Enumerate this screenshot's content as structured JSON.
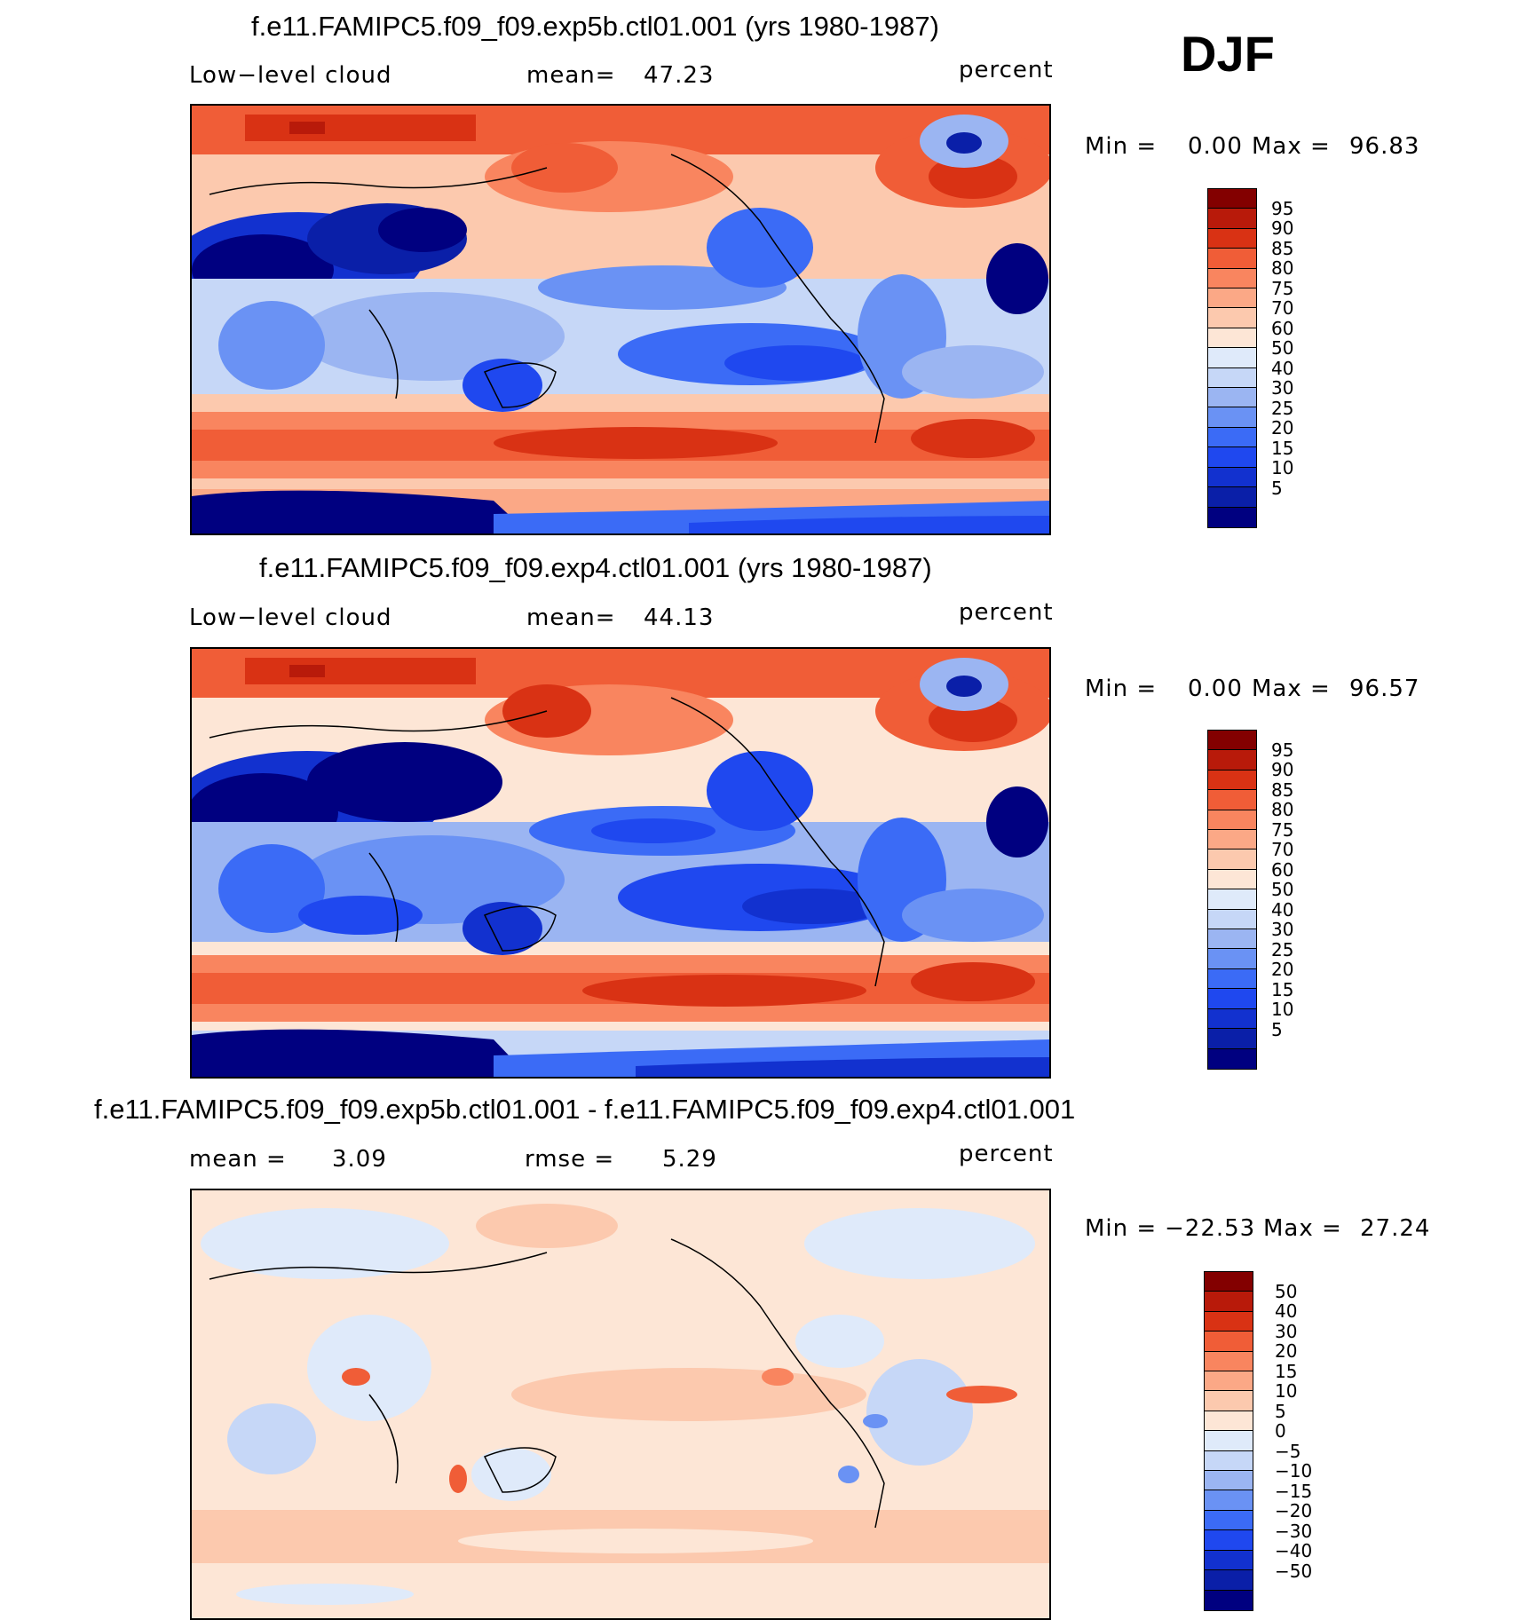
{
  "season": "DJF",
  "colorbars": {
    "abs": {
      "colors": [
        "#000080",
        "#0a1fa8",
        "#1231cf",
        "#1f48ef",
        "#3b6bf6",
        "#6a92f4",
        "#9bb5f2",
        "#c6d7f7",
        "#dfeafa",
        "#fde6d6",
        "#fcc9ae",
        "#fba886",
        "#f9855f",
        "#f05d37",
        "#d93214",
        "#b81a0a",
        "#830000"
      ],
      "labels": [
        "95",
        "90",
        "85",
        "80",
        "75",
        "70",
        "60",
        "50",
        "40",
        "30",
        "25",
        "20",
        "15",
        "10",
        "5"
      ]
    },
    "diff": {
      "colors": [
        "#000080",
        "#0a1fa8",
        "#1231cf",
        "#1f48ef",
        "#3b6bf6",
        "#6a92f4",
        "#9bb5f2",
        "#c6d7f7",
        "#dfeafa",
        "#fde6d6",
        "#fcc9ae",
        "#fba886",
        "#f9855f",
        "#f05d37",
        "#d93214",
        "#b81a0a",
        "#830000"
      ],
      "labels": [
        "50",
        "40",
        "30",
        "20",
        "15",
        "10",
        "5",
        "0",
        "−5",
        "−10",
        "−15",
        "−20",
        "−30",
        "−40",
        "−50"
      ]
    }
  },
  "chart_data": [
    {
      "type": "heatmap",
      "title": "f.e11.FAMIPC5.f09_f09.exp5b.ctl01.001 (yrs 1980-1987)",
      "variable": "Low−level cloud",
      "stat_label": "mean=",
      "stat_value": "47.23",
      "units": "percent",
      "min_label": "Min  =",
      "min": "0.00",
      "max_label": "Max  =",
      "max": "96.83",
      "color_levels": [
        5,
        10,
        15,
        20,
        25,
        30,
        40,
        50,
        60,
        70,
        75,
        80,
        85,
        90,
        95
      ]
    },
    {
      "type": "heatmap",
      "title": "f.e11.FAMIPC5.f09_f09.exp4.ctl01.001 (yrs 1980-1987)",
      "variable": "Low−level cloud",
      "stat_label": "mean=",
      "stat_value": "44.13",
      "units": "percent",
      "min_label": "Min  =",
      "min": "0.00",
      "max_label": "Max  =",
      "max": "96.57",
      "color_levels": [
        5,
        10,
        15,
        20,
        25,
        30,
        40,
        50,
        60,
        70,
        75,
        80,
        85,
        90,
        95
      ]
    },
    {
      "type": "heatmap",
      "title": "f.e11.FAMIPC5.f09_f09.exp5b.ctl01.001 - f.e11.FAMIPC5.f09_f09.exp4.ctl01.001",
      "variable": "mean  =",
      "variable_value": "3.09",
      "stat_label": "rmse  =",
      "stat_value": "5.29",
      "units": "percent",
      "min_label": "Min  =",
      "min": "−22.53",
      "max_label": "Max  =",
      "max": "27.24",
      "color_levels": [
        -50,
        -40,
        -30,
        -20,
        -15,
        -10,
        -5,
        0,
        5,
        10,
        15,
        20,
        30,
        40,
        50
      ]
    }
  ]
}
